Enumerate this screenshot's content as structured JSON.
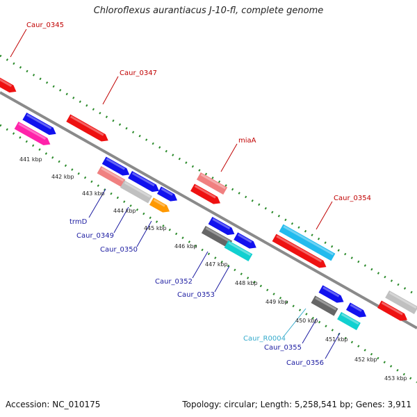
{
  "title": "Chloroflexus aurantiacus J-10-fl, complete genome",
  "accession": "Accession: NC_010175",
  "topology": "Topology: circular; Length: 5,258,541 bp; Genes: 3,911",
  "colors": {
    "backbone": "#8c8c8c",
    "tick": "#2a8a2a",
    "label_red": "#c00000",
    "label_blue": "#1a1aa0",
    "label_cyan": "#33aacc"
  },
  "kbp_labels": [
    "441 kbp",
    "442 kbp",
    "443 kbp",
    "444 kbp",
    "445 kbp",
    "446 kbp",
    "447 kbp",
    "448 kbp",
    "449 kbp",
    "450 kbp",
    "451 kbp",
    "452 kbp",
    "453 kbp"
  ],
  "labels_top": [
    {
      "id": "caur-0345",
      "text": "Caur_0345"
    },
    {
      "id": "caur-0347",
      "text": "Caur_0347"
    },
    {
      "id": "miaa",
      "text": "miaA"
    },
    {
      "id": "caur-0354",
      "text": "Caur_0354"
    }
  ],
  "labels_bottom": [
    {
      "id": "trmd",
      "text": "trmD"
    },
    {
      "id": "caur-0349",
      "text": "Caur_0349"
    },
    {
      "id": "caur-0350",
      "text": "Caur_0350"
    },
    {
      "id": "caur-0352",
      "text": "Caur_0352"
    },
    {
      "id": "caur-0353",
      "text": "Caur_0353"
    },
    {
      "id": "caur-r0004",
      "text": "Caur_R0004"
    },
    {
      "id": "caur-0355",
      "text": "Caur_0355"
    },
    {
      "id": "caur-0356",
      "text": "Caur_0356"
    }
  ],
  "feature_colors": {
    "red": "#ee1111",
    "blue": "#1111ee",
    "magenta": "#ff22aa",
    "pink": "#f08080",
    "gray": "#c0c0c0",
    "dark_gray": "#666666",
    "orange": "#ff9900",
    "cyan": "#11d0d0",
    "sky": "#22bbee"
  }
}
